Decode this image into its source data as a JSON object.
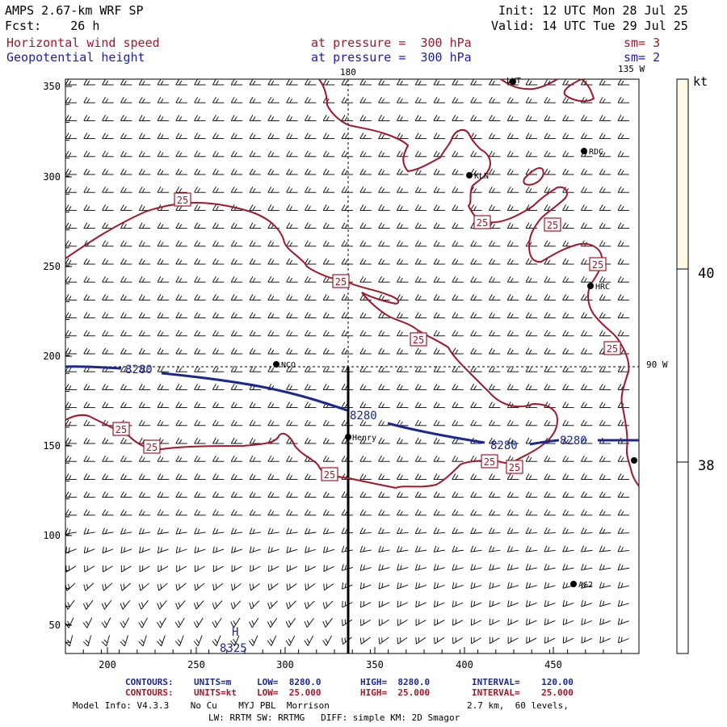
{
  "header": {
    "model": "AMPS 2.67-km WRF SP",
    "forecast": "Fcst:    26 h",
    "init": "Init: 12 UTC Mon 28 Jul 25",
    "valid": "Valid: 14 UTC Tue 29 Jul 25",
    "field1_name": "Horizontal wind speed",
    "field1_level": "at pressure =  300 hPa",
    "field1_sm": "sm= 3",
    "field2_name": "Geopotential height",
    "field2_level": "at pressure =  300 hPa",
    "field2_sm": "sm= 2"
  },
  "map": {
    "lon_labels": [
      "180",
      "135 W",
      "90 W"
    ],
    "x_ticks": [
      "200",
      "250",
      "300",
      "350",
      "400",
      "450"
    ],
    "y_ticks": [
      "350",
      "300",
      "250",
      "200",
      "150",
      "100",
      "50"
    ],
    "stations": [
      {
        "name": "LVT"
      },
      {
        "name": "RDC"
      },
      {
        "name": "KLN"
      },
      {
        "name": "HRC"
      },
      {
        "name": "NCO"
      },
      {
        "name": "Henry"
      },
      {
        "name": "AG2"
      }
    ],
    "height_contour_label": "8280",
    "wind_contour_label": "25",
    "high_label": "H",
    "high_value": "8325"
  },
  "colorbar": {
    "unit": "kt",
    "labels": [
      "40",
      "38"
    ]
  },
  "footer": {
    "c1_head": "CONTOURS:",
    "c1_units": "UNITS=m",
    "c1_low": "LOW=  8280.0",
    "c1_high": "HIGH=  8280.0",
    "c1_interval": "INTERVAL=    120.00",
    "c2_head": "CONTOURS:",
    "c2_units": "UNITS=kt",
    "c2_low": "LOW=  25.000",
    "c2_high": "HIGH=  25.000",
    "c2_interval": "INTERVAL=    25.000",
    "model_info": "Model Info: V4.3.3    No Cu    MYJ PBL  Morrison",
    "resolution": "2.7 km,  60 levels,",
    "physics": "LW: RRTM SW: RRTMG   DIFF: simple KM: 2D Smagor"
  },
  "colors": {
    "height_contour": "#1c2890",
    "wind_contour": "#a0182a",
    "colorbar_fill": "#fffbe6"
  }
}
